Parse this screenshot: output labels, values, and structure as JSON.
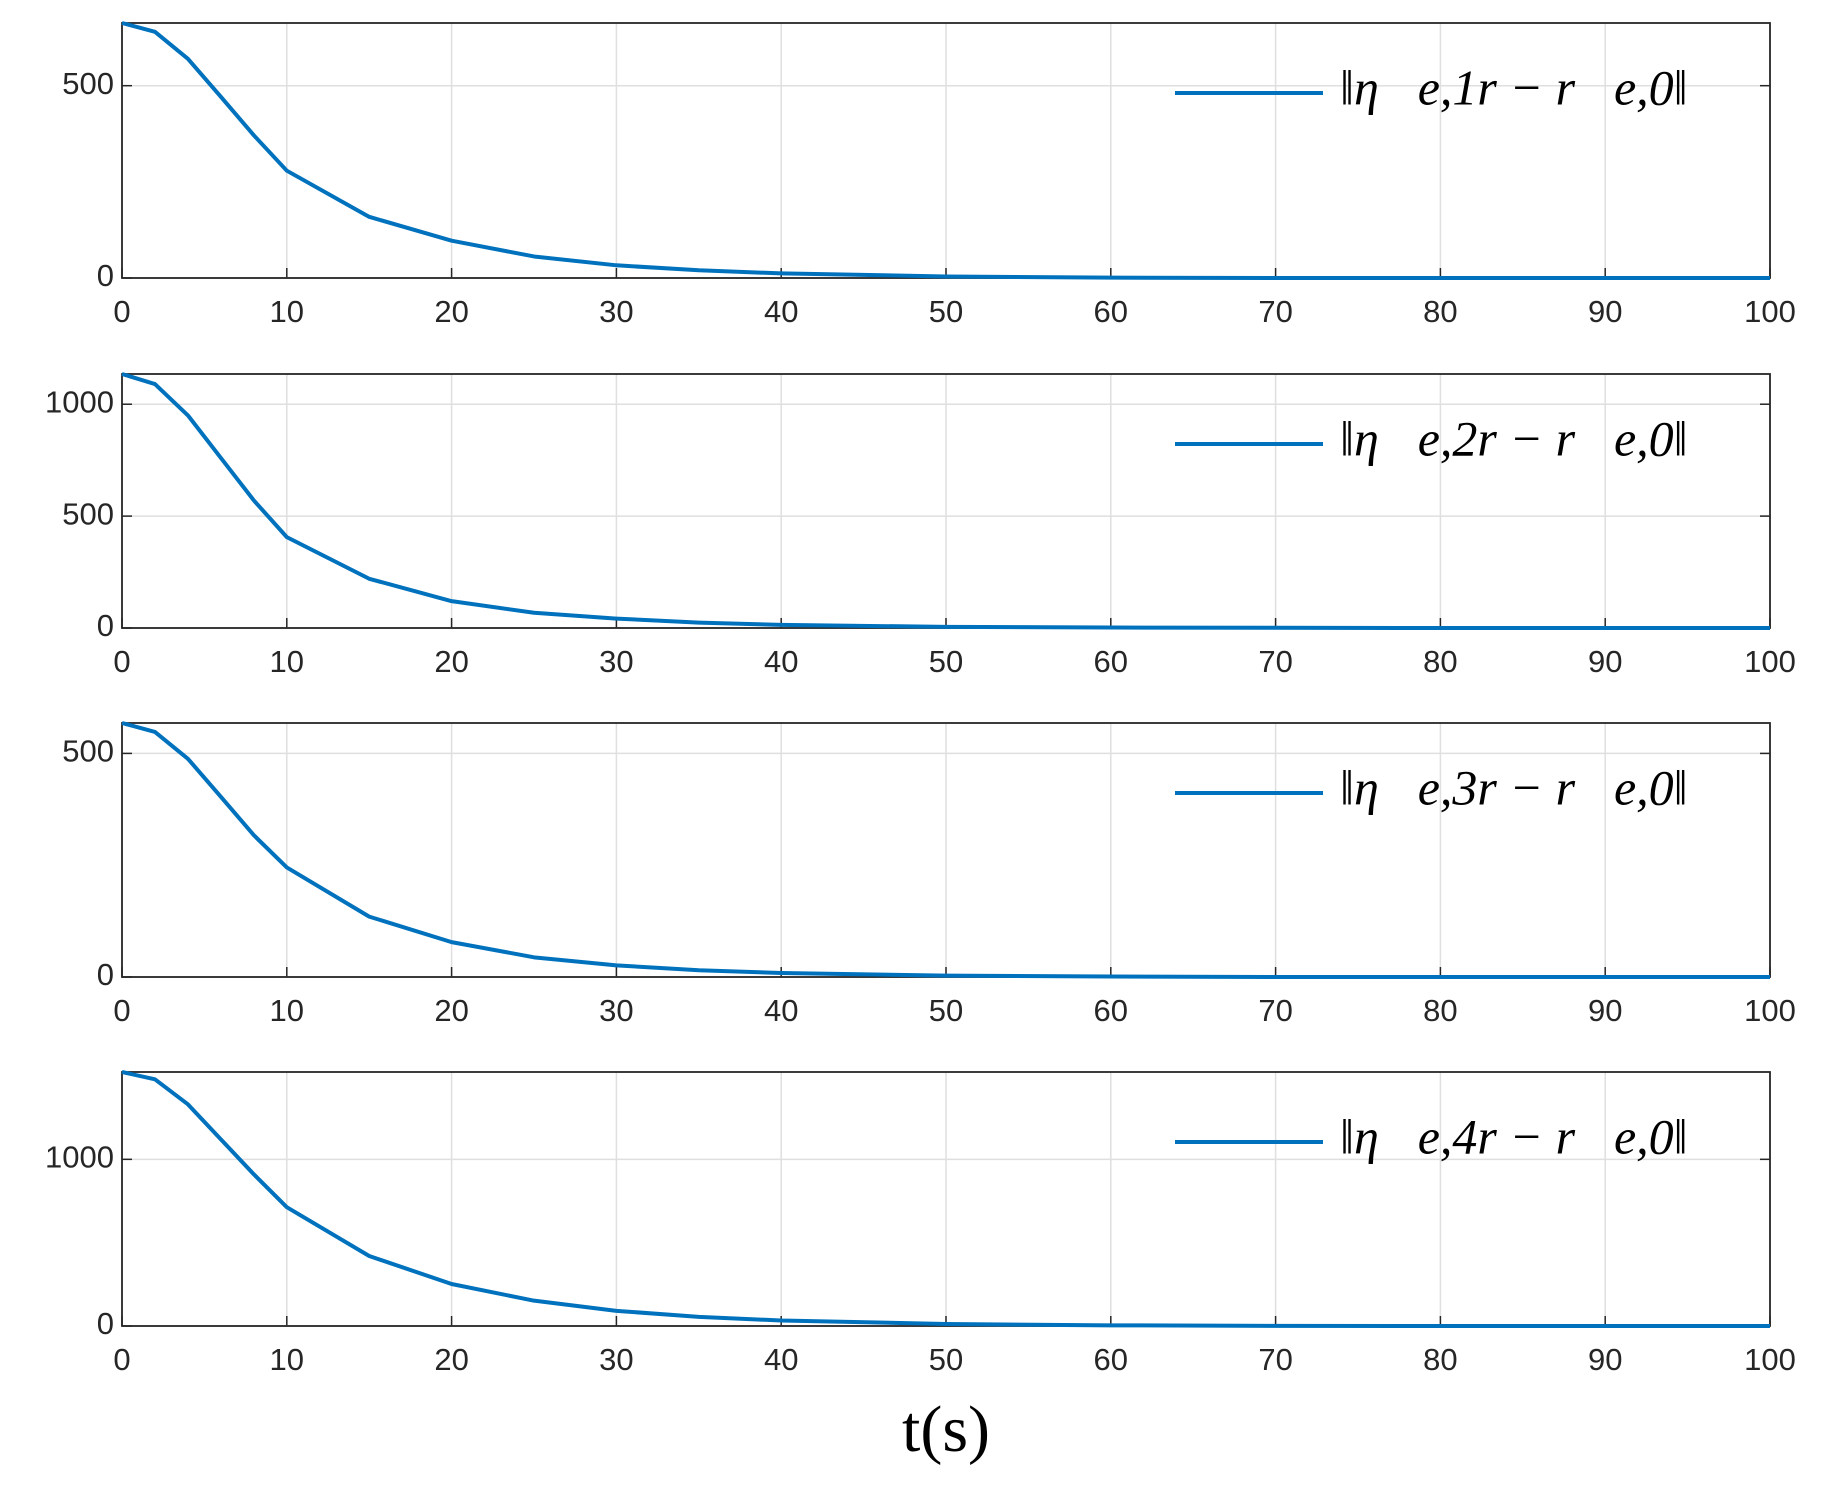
{
  "chart_data": [
    {
      "type": "line",
      "x": [
        0,
        2,
        4,
        6,
        8,
        10,
        15,
        20,
        25,
        30,
        35,
        40,
        50,
        60,
        70,
        80,
        90,
        100
      ],
      "series": [
        {
          "name": "‖η⃗e,1r − r⃗e,0‖",
          "color": "#0072bd",
          "values": [
            663,
            640,
            570,
            471,
            371,
            279,
            159,
            97,
            56,
            33,
            20,
            12,
            4,
            1,
            0,
            0,
            0,
            0
          ]
        }
      ],
      "xlim": [
        0,
        100
      ],
      "xticks": [
        0,
        10,
        20,
        30,
        40,
        50,
        60,
        70,
        80,
        90,
        100
      ],
      "ylim": [
        0,
        663
      ],
      "yticks": [
        0,
        500
      ],
      "grid": true,
      "legend": "upper right"
    },
    {
      "type": "line",
      "x": [
        0,
        2,
        4,
        6,
        8,
        10,
        15,
        20,
        25,
        30,
        35,
        40,
        50,
        60,
        70,
        80,
        90,
        100
      ],
      "series": [
        {
          "name": "‖η⃗e,2r − r⃗e,0‖",
          "color": "#0072bd",
          "values": [
            1135,
            1090,
            950,
            760,
            570,
            406,
            220,
            120,
            68,
            42,
            24,
            14,
            5,
            2,
            1,
            0,
            0,
            0
          ]
        }
      ],
      "xlim": [
        0,
        100
      ],
      "xticks": [
        0,
        10,
        20,
        30,
        40,
        50,
        60,
        70,
        80,
        90,
        100
      ],
      "ylim": [
        0,
        1135
      ],
      "yticks": [
        0,
        500,
        1000
      ],
      "grid": true,
      "legend": "upper right"
    },
    {
      "type": "line",
      "x": [
        0,
        2,
        4,
        6,
        8,
        10,
        15,
        20,
        25,
        30,
        35,
        40,
        50,
        60,
        70,
        80,
        90,
        100
      ],
      "series": [
        {
          "name": "‖η⃗e,3r − r⃗e,0‖",
          "color": "#0072bd",
          "values": [
            568,
            548,
            488,
            403,
            317,
            245,
            135,
            78,
            44,
            26,
            15,
            9,
            3,
            1,
            0,
            0,
            0,
            0
          ]
        }
      ],
      "xlim": [
        0,
        100
      ],
      "xticks": [
        0,
        10,
        20,
        30,
        40,
        50,
        60,
        70,
        80,
        90,
        100
      ],
      "ylim": [
        0,
        568
      ],
      "yticks": [
        0,
        500
      ],
      "grid": true,
      "legend": "upper right"
    },
    {
      "type": "line",
      "x": [
        0,
        2,
        4,
        6,
        8,
        10,
        15,
        20,
        25,
        30,
        35,
        40,
        50,
        60,
        70,
        80,
        90,
        100
      ],
      "series": [
        {
          "name": "‖η⃗e,4r − r⃗e,0‖",
          "color": "#0072bd",
          "values": [
            1524,
            1480,
            1330,
            1120,
            910,
            713,
            420,
            252,
            152,
            91,
            55,
            33,
            12,
            4,
            1,
            0,
            0,
            0
          ]
        }
      ],
      "xlim": [
        0,
        100
      ],
      "xticks": [
        0,
        10,
        20,
        30,
        40,
        50,
        60,
        70,
        80,
        90,
        100
      ],
      "ylim": [
        0,
        1524
      ],
      "yticks": [
        0,
        1000
      ],
      "grid": true,
      "legend": "upper right",
      "x_label": "t(s)"
    }
  ]
}
